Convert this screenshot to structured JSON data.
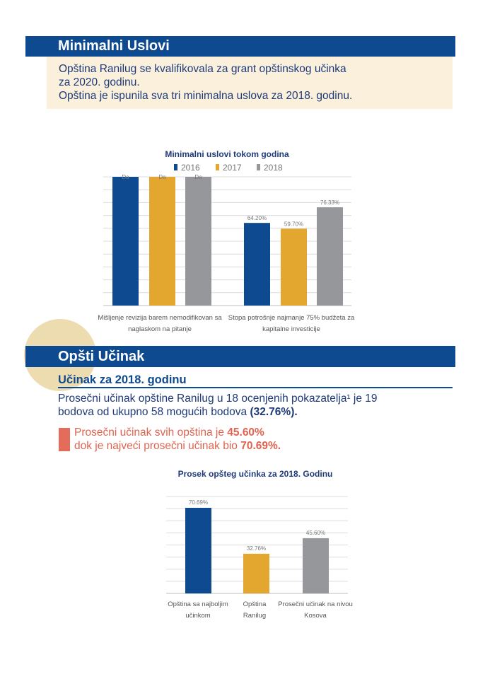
{
  "section1": {
    "title": "Minimalni Uslovi",
    "line1": "Opština Ranilug se kvalifikovala za grant opštinskog učinka",
    "line2": "za 2020. godinu.",
    "line3": "Opština je ispunila sva tri minimalna uslova za 2018. godinu."
  },
  "section2": {
    "title": "Opšti Učinak",
    "subtitle": "Učinak za 2018. godinu",
    "para_line1": "Prosečni učinak opštine Ranilug u 18 ocenjenih pokazatelja¹ je 19",
    "para_line2": "bodova od ukupno 58 mogućih bodova",
    "para_bold": "(32.76%).",
    "red_line1": "Prosečni učinak svih opština je ",
    "red_bold1": "45.60%",
    "red_line2": "dok je najveći prosečni učinak bio ",
    "red_bold2": "70.69%."
  },
  "colors": {
    "navy": "#0d4a8f",
    "gold": "#e3a72f",
    "gray": "#96979b",
    "red": "#e36c5a",
    "beige": "#faf0dc"
  },
  "chart_data": [
    {
      "type": "bar",
      "title": "Minimalni uslovi tokom godina",
      "series_names": [
        "2016",
        "2017",
        "2018"
      ],
      "categories": [
        [
          "Mišljenje revizija barem nemodifikovan sa",
          "naglaskom na pitanje"
        ],
        [
          "Stopa potrošnje najmanje 75% budžeta za",
          "kapitalne investicije"
        ]
      ],
      "series": [
        {
          "name": "2016",
          "values": [
            "Da",
            64.2
          ],
          "labels": [
            "Da",
            "64.20%"
          ]
        },
        {
          "name": "2017",
          "values": [
            "Da",
            59.7
          ],
          "labels": [
            "Da",
            "59.70%"
          ]
        },
        {
          "name": "2018",
          "values": [
            "Da",
            76.33
          ],
          "labels": [
            "Da",
            "76.33%"
          ]
        }
      ],
      "ylim": [
        0,
        100
      ],
      "grid": true,
      "legend": "top"
    },
    {
      "type": "bar",
      "title": "Prosek opšteg učinka za 2018. Godinu",
      "categories": [
        [
          "Opština sa najboljim",
          "učinkom"
        ],
        [
          "Opština",
          "Ranilug"
        ],
        [
          "Prosečni učinak na nivou",
          "Kosova"
        ]
      ],
      "values": [
        70.69,
        32.76,
        45.6
      ],
      "labels": [
        "70.69%",
        "32.76%",
        "45.60%"
      ],
      "ylim": [
        0,
        80
      ],
      "grid": true
    }
  ]
}
